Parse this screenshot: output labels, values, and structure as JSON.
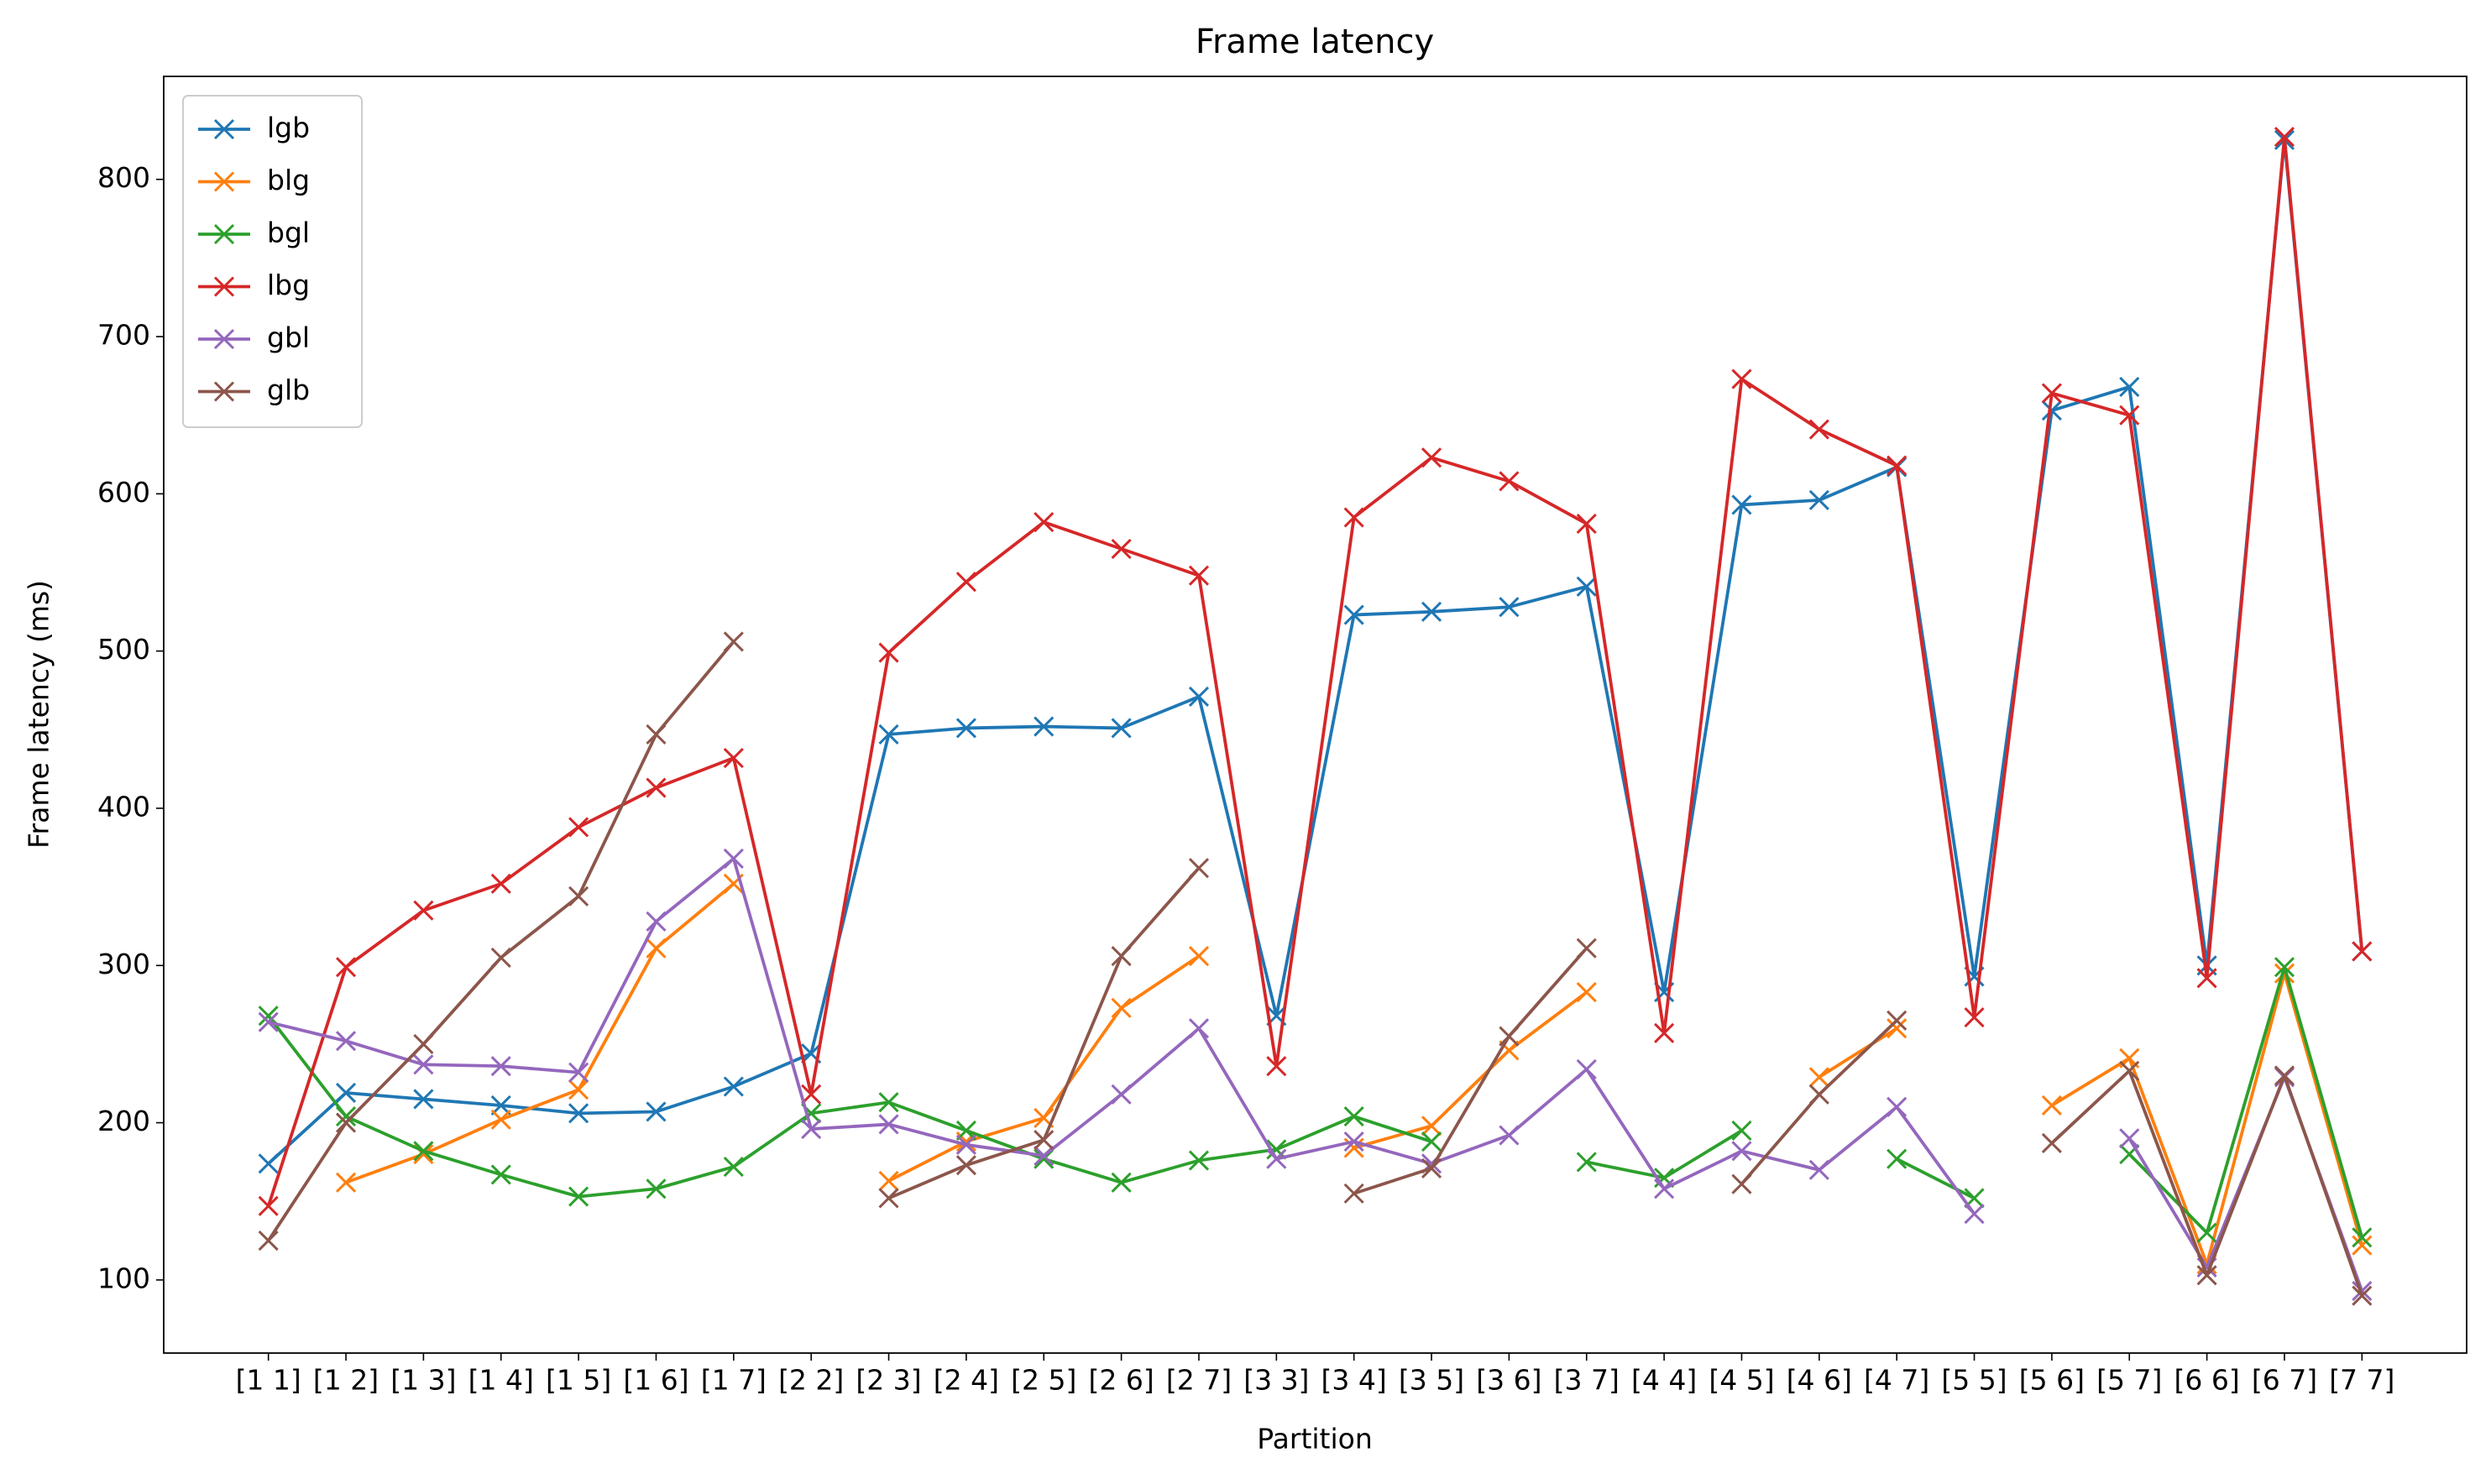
{
  "chart_data": {
    "type": "line",
    "title": "Frame latency",
    "x_label": "Partition",
    "y_label": "Frame latency (ms)",
    "categories": [
      "[1 1]",
      "[1 2]",
      "[1 3]",
      "[1 4]",
      "[1 5]",
      "[1 6]",
      "[1 7]",
      "[2 2]",
      "[2 3]",
      "[2 4]",
      "[2 5]",
      "[2 6]",
      "[2 7]",
      "[3 3]",
      "[3 4]",
      "[3 5]",
      "[3 6]",
      "[3 7]",
      "[4 4]",
      "[4 5]",
      "[4 6]",
      "[4 7]",
      "[5 5]",
      "[5 6]",
      "[5 7]",
      "[6 6]",
      "[6 7]",
      "[7 7]"
    ],
    "series": [
      {
        "name": "lgb",
        "color": "#1f77b4",
        "values": [
          174,
          219,
          215,
          211,
          206,
          207,
          223,
          244,
          447,
          451,
          452,
          451,
          471,
          268,
          523,
          525,
          528,
          541,
          283,
          593,
          596,
          617,
          293,
          653,
          668,
          300,
          825,
          309
        ]
      },
      {
        "name": "blg",
        "color": "#ff7f0e",
        "values": [
          null,
          162,
          180,
          202,
          221,
          311,
          352,
          null,
          163,
          188,
          203,
          273,
          306,
          null,
          184,
          198,
          246,
          283,
          null,
          null,
          229,
          260,
          null,
          211,
          241,
          110,
          295,
          122
        ]
      },
      {
        "name": "bgl",
        "color": "#2ca02c",
        "values": [
          268,
          204,
          182,
          167,
          153,
          158,
          172,
          206,
          213,
          195,
          177,
          162,
          176,
          183,
          204,
          188,
          null,
          175,
          165,
          195,
          null,
          177,
          152,
          null,
          180,
          130,
          299,
          127
        ]
      },
      {
        "name": "lbg",
        "color": "#d62728",
        "values": [
          147,
          299,
          335,
          352,
          388,
          413,
          432,
          218,
          499,
          544,
          582,
          565,
          548,
          236,
          585,
          623,
          608,
          581,
          257,
          673,
          641,
          618,
          267,
          664,
          650,
          292,
          827,
          309
        ]
      },
      {
        "name": "gbl",
        "color": "#9467bd",
        "values": [
          264,
          252,
          237,
          236,
          232,
          328,
          368,
          196,
          199,
          186,
          179,
          218,
          260,
          177,
          188,
          174,
          192,
          234,
          158,
          182,
          170,
          210,
          142,
          null,
          190,
          108,
          229,
          93
        ]
      },
      {
        "name": "glb",
        "color": "#8c564b",
        "values": [
          125,
          200,
          250,
          305,
          344,
          447,
          506,
          null,
          152,
          173,
          189,
          306,
          362,
          null,
          155,
          171,
          255,
          311,
          null,
          161,
          218,
          265,
          null,
          187,
          233,
          103,
          230,
          90
        ]
      }
    ],
    "ylim": [
      53.5,
      865.5
    ],
    "yticks": [
      100,
      200,
      300,
      400,
      500,
      600,
      700,
      800
    ],
    "grid": false,
    "legend": "upper left"
  }
}
